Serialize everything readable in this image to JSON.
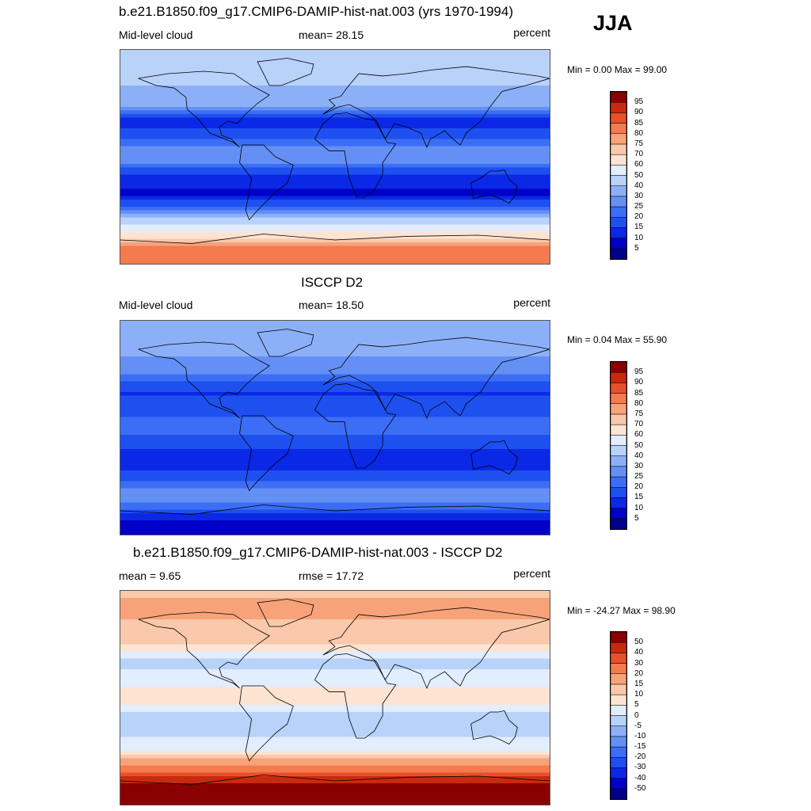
{
  "season": "JJA",
  "panels": [
    {
      "title": "b.e21.B1850.f09_g17.CMIP6-DAMIP-hist-nat.003 (yrs 1970-1994)",
      "left_label": "Mid-level cloud",
      "center_label": "mean=  28.15",
      "right_label": "percent",
      "minmax": "Min =   0.00 Max =  99.00"
    },
    {
      "title": "ISCCP D2",
      "left_label": "Mid-level cloud",
      "center_label": "mean=  18.50",
      "right_label": "percent",
      "minmax": "Min =   0.04 Max =  55.90"
    },
    {
      "title": "b.e21.B1850.f09_g17.CMIP6-DAMIP-hist-nat.003 - ISCCP D2",
      "left_label": "mean =   9.65",
      "center_label": "rmse =  17.72",
      "right_label": "percent",
      "minmax": "Min = -24.27 Max =  98.90"
    }
  ],
  "chart_data": [
    {
      "type": "heatmap",
      "title": "b.e21.B1850.f09_g17.CMIP6-DAMIP-hist-nat.003 (yrs 1970-1994)",
      "variable": "Mid-level cloud",
      "units": "percent",
      "mean": 28.15,
      "min": 0.0,
      "max": 99.0,
      "colorbar_levels": [
        5,
        10,
        15,
        20,
        25,
        30,
        40,
        50,
        60,
        70,
        75,
        80,
        85,
        90,
        95
      ],
      "colorbar_colors": [
        "#00008b",
        "#0000c8",
        "#0a28e6",
        "#1e50f0",
        "#3c6ef5",
        "#6490f5",
        "#8cb0f8",
        "#b8d2fa",
        "#e2edfd",
        "#fde4d2",
        "#fac8aa",
        "#f8a27a",
        "#f57a4e",
        "#e8502a",
        "#c82a0e",
        "#8b0000"
      ],
      "zonal_mean_by_latitude": {
        "latitude": [
          90,
          75,
          60,
          45,
          30,
          15,
          0,
          -15,
          -30,
          -45,
          -60,
          -75,
          -90
        ],
        "value": [
          45,
          50,
          40,
          35,
          12,
          20,
          30,
          15,
          8,
          25,
          55,
          80,
          85
        ]
      }
    },
    {
      "type": "heatmap",
      "title": "ISCCP D2",
      "variable": "Mid-level cloud",
      "units": "percent",
      "mean": 18.5,
      "min": 0.04,
      "max": 55.9,
      "colorbar_levels": [
        5,
        10,
        15,
        20,
        25,
        30,
        40,
        50,
        60,
        70,
        75,
        80,
        85,
        90,
        95
      ],
      "colorbar_colors": [
        "#00008b",
        "#0000c8",
        "#0a28e6",
        "#1e50f0",
        "#3c6ef5",
        "#6490f5",
        "#8cb0f8",
        "#b8d2fa",
        "#e2edfd",
        "#fde4d2",
        "#fac8aa",
        "#f8a27a",
        "#f57a4e",
        "#e8502a",
        "#c82a0e",
        "#8b0000"
      ],
      "zonal_mean_by_latitude": {
        "latitude": [
          90,
          75,
          60,
          45,
          30,
          15,
          0,
          -15,
          -30,
          -45,
          -60,
          -75,
          -90
        ],
        "value": [
          35,
          38,
          30,
          25,
          14,
          18,
          22,
          16,
          10,
          20,
          30,
          12,
          5
        ]
      }
    },
    {
      "type": "heatmap",
      "title": "b.e21.B1850.f09_g17.CMIP6-DAMIP-hist-nat.003 - ISCCP D2",
      "variable": "difference",
      "units": "percent",
      "mean": 9.65,
      "rmse": 17.72,
      "min": -24.27,
      "max": 98.9,
      "colorbar_levels": [
        -50,
        -40,
        -30,
        -20,
        -15,
        -10,
        -5,
        0,
        5,
        10,
        15,
        20,
        30,
        40,
        50
      ],
      "colorbar_colors": [
        "#00008b",
        "#0000c8",
        "#0a28e6",
        "#1e50f0",
        "#3c6ef5",
        "#6490f5",
        "#8cb0f8",
        "#b8d2fa",
        "#e2edfd",
        "#fde4d2",
        "#fac8aa",
        "#f8a27a",
        "#f57a4e",
        "#e8502a",
        "#c82a0e",
        "#8b0000"
      ],
      "zonal_mean_by_latitude": {
        "latitude": [
          90,
          75,
          60,
          45,
          30,
          15,
          0,
          -15,
          -30,
          -45,
          -60,
          -75,
          -90
        ],
        "value": [
          10,
          20,
          12,
          10,
          -2,
          2,
          8,
          -1,
          -2,
          5,
          25,
          60,
          80
        ]
      }
    }
  ]
}
